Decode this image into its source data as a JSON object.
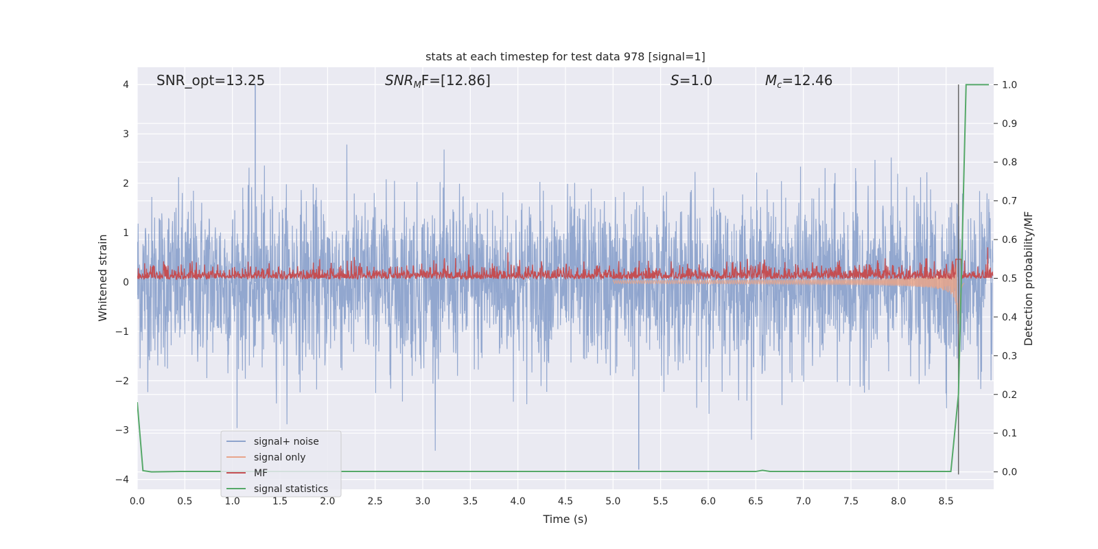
{
  "chart_data": {
    "type": "line",
    "title": "stats at each timestep for test data 978 [signal=1]",
    "xlabel": "Time (s)",
    "ylabel": "Whitened strain",
    "ylabel_right": "Detection probability/MF",
    "xlim": [
      0.0,
      9.0
    ],
    "ylim": [
      -4.2,
      4.35
    ],
    "ylim_right": [
      -0.045,
      1.045
    ],
    "x_ticks": [
      "0.0",
      "0.5",
      "1.0",
      "1.5",
      "2.0",
      "2.5",
      "3.0",
      "3.5",
      "4.0",
      "4.5",
      "5.0",
      "5.5",
      "6.0",
      "6.5",
      "7.0",
      "7.5",
      "8.0",
      "8.5"
    ],
    "y_ticks": [
      "4",
      "3",
      "2",
      "1",
      "0",
      "−1",
      "−2",
      "−3",
      "−4"
    ],
    "y_right_ticks": [
      "1.0",
      "0.9",
      "0.8",
      "0.7",
      "0.6",
      "0.5",
      "0.4",
      "0.3",
      "0.2",
      "0.1",
      "0.0"
    ],
    "annotations": {
      "snr_opt": "SNR_opt=13.25",
      "snr_mf_main": "SNR",
      "snr_mf_sub": "M",
      "snr_mf_tail": "F=[12.86]",
      "s_main": "S",
      "s_tail": "=1.0",
      "mc_main": "M",
      "mc_sub": "c",
      "mc_tail": "=12.46"
    },
    "grid": true,
    "legend_position": "lower-left",
    "series": [
      {
        "name": "signal+ noise",
        "color": "#8da3cc",
        "axis": "left"
      },
      {
        "name": "signal only",
        "color": "#e8a48a",
        "axis": "left"
      },
      {
        "name": "MF",
        "color": "#c44e52",
        "axis": "left"
      },
      {
        "name": "signal statistics",
        "color": "#55a868",
        "axis": "right",
        "x": [
          0.0,
          0.06,
          0.15,
          0.45,
          6.5,
          6.57,
          6.65,
          8.55,
          8.63,
          8.71,
          8.95
        ],
        "y": [
          0.18,
          0.003,
          0.0,
          0.001,
          0.001,
          0.004,
          0.001,
          0.001,
          0.2,
          1.0,
          1.0
        ]
      },
      {
        "name": "",
        "color": "#666666",
        "axis": "left",
        "x": [
          8.63,
          8.63
        ],
        "y": [
          -3.9,
          4.0
        ]
      }
    ],
    "noise_model": {
      "std": 0.85,
      "extremes": [
        4.0,
        -3.8
      ]
    },
    "chirp_model": {
      "start": 5.0,
      "merger": 8.63,
      "peak_amplitude": 0.85
    },
    "mf_model": {
      "base": 0.06,
      "spread": 0.15
    }
  }
}
